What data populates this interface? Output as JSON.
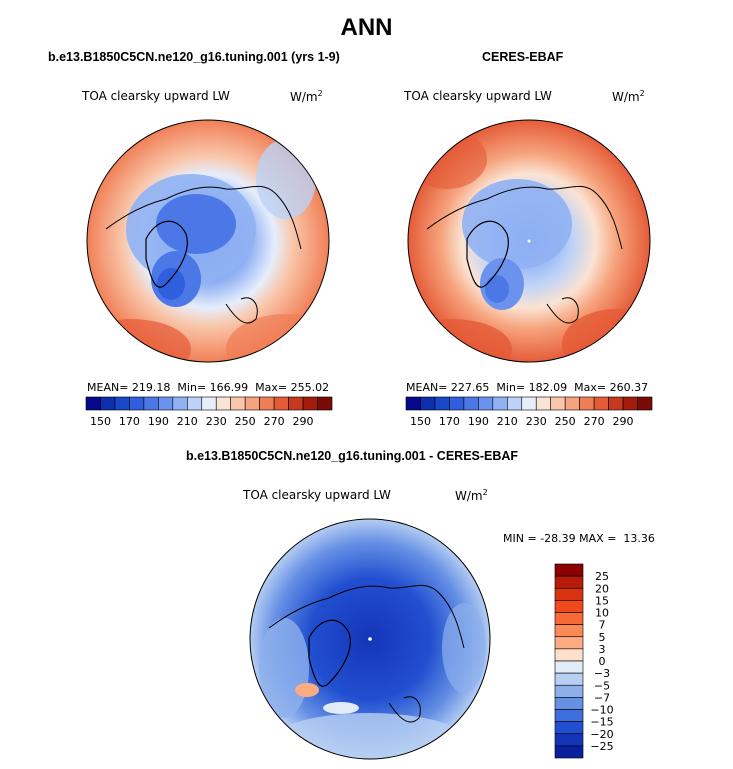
{
  "title": "ANN",
  "chart_data": [
    {
      "type": "heatmap",
      "projection": "north polar stereographic",
      "title": "b.e13.B1850C5CN.ne120_g16.tuning.001 (yrs 1-9)",
      "variable": "TOA clearsky upward LW",
      "units": "W/m",
      "units_exp": "2",
      "stats": {
        "mean_label": "MEAN=",
        "mean": "219.18",
        "min_label": "Min=",
        "min": "166.99",
        "max_label": "Max=",
        "max": "255.02"
      },
      "colorbar": {
        "orientation": "horizontal",
        "levels": [
          150,
          170,
          190,
          210,
          230,
          250,
          270,
          290
        ],
        "colors": [
          "#08088a",
          "#0c2fae",
          "#1848c8",
          "#2f5fdc",
          "#4b78e6",
          "#6b93ee",
          "#90b1f3",
          "#bcd2f8",
          "#e6eefc",
          "#fbe3d3",
          "#f9c6aa",
          "#f6a47d",
          "#f07e55",
          "#e55a37",
          "#c8381f",
          "#a31c0c",
          "#7a0a05"
        ]
      }
    },
    {
      "type": "heatmap",
      "projection": "north polar stereographic",
      "title": "CERES-EBAF",
      "variable": "TOA clearsky upward LW",
      "units": "W/m",
      "units_exp": "2",
      "stats": {
        "mean_label": "MEAN=",
        "mean": "227.65",
        "min_label": "Min=",
        "min": "182.09",
        "max_label": "Max=",
        "max": "260.37"
      },
      "colorbar": {
        "orientation": "horizontal",
        "levels": [
          150,
          170,
          190,
          210,
          230,
          250,
          270,
          290
        ]
      }
    },
    {
      "type": "heatmap",
      "projection": "north polar stereographic",
      "title": "b.e13.B1850C5CN.ne120_g16.tuning.001 - CERES-EBAF",
      "variable": "TOA clearsky upward LW",
      "units": "W/m",
      "units_exp": "2",
      "stats": {
        "min_label": "MIN =",
        "min": "-28.39",
        "max_label": "MAX =",
        "max": "13.36"
      },
      "colorbar": {
        "orientation": "vertical",
        "levels": [
          25,
          20,
          15,
          10,
          7,
          5,
          3,
          0,
          -3,
          -5,
          -7,
          -10,
          -15,
          -20,
          -25
        ],
        "colors": [
          "#8b0000",
          "#b51a0a",
          "#d8320f",
          "#ee4a1c",
          "#f86a35",
          "#fb8a57",
          "#fcab82",
          "#fde0cc",
          "#e2ecf9",
          "#b8cff3",
          "#8db0ec",
          "#6690e4",
          "#3f6fdc",
          "#214fd0",
          "#1535b8",
          "#0a1f9a"
        ]
      }
    }
  ]
}
